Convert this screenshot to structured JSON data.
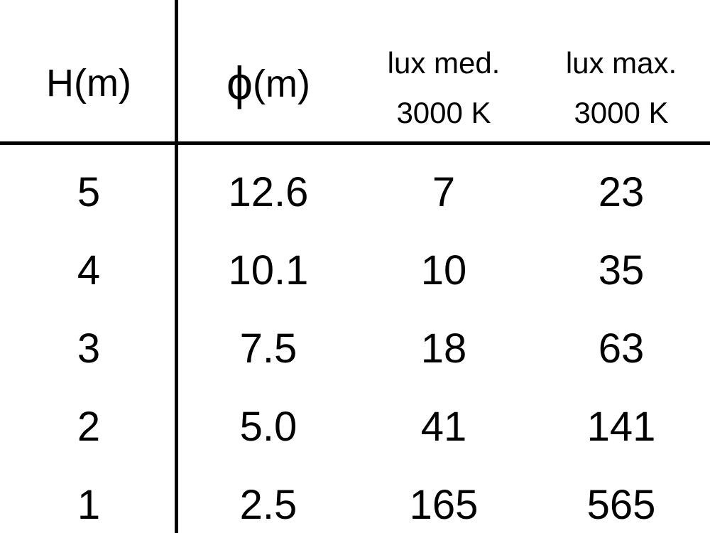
{
  "table": {
    "headers": [
      {
        "line1": "H(m)"
      },
      {
        "symbol": "ϕ",
        "line1": "(m)"
      },
      {
        "line1": "lux med.",
        "line2": "3000 K"
      },
      {
        "line1": "lux max.",
        "line2": "3000 K"
      }
    ],
    "rows": [
      [
        "5",
        "12.6",
        "7",
        "23"
      ],
      [
        "4",
        "10.1",
        "10",
        "35"
      ],
      [
        "3",
        "7.5",
        "18",
        "63"
      ],
      [
        "2",
        "5.0",
        "41",
        "141"
      ],
      [
        "1",
        "2.5",
        "165",
        "565"
      ]
    ]
  }
}
